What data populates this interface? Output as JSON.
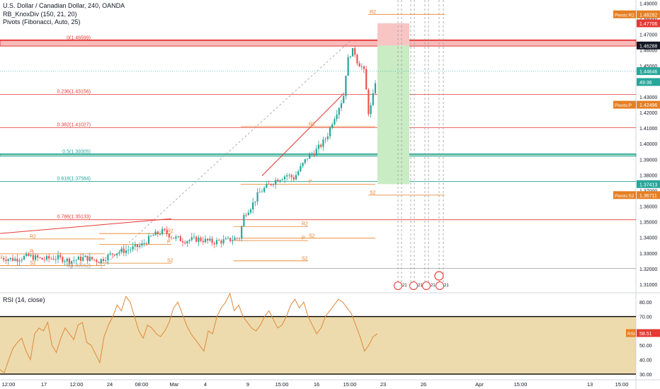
{
  "legend": {
    "symbol": "U.S. Dollar / Canadian Dollar, 240, OANDA",
    "indicator1": "RB_KnoxDiv (150, 21, 20)",
    "indicator2": "Pivots (Fibonacci, Auto, 25)",
    "rsi": "RSI (14, close)"
  },
  "colors": {
    "candle_up": "#26a69a",
    "candle_down": "#ef5350",
    "pivot": "#e67e22",
    "fib_red": "#e53935",
    "fib_green": "#26a69a",
    "rsi_band": "#e6cc8a",
    "rsi_line": "#e0883a"
  },
  "price_axis": {
    "ticks": [
      "1.49000",
      "1.48000",
      "1.47000",
      "1.46000",
      "1.45000",
      "1.44000",
      "1.43000",
      "1.42000",
      "1.41000",
      "1.40000",
      "1.39000",
      "1.38000",
      "1.37000",
      "1.36000",
      "1.35000",
      "1.34000",
      "1.33000",
      "1.32000",
      "1.31000"
    ],
    "tags": [
      {
        "label": "Pivots:R2",
        "value": "1.48282",
        "bg": "#e67e22"
      },
      {
        "label": "",
        "value": "1.47706",
        "bg": "#e53935"
      },
      {
        "label": "",
        "value": "1.46288",
        "bg": "#131722"
      },
      {
        "label": "",
        "value": "1.44646",
        "bg": "#26a69a"
      },
      {
        "label": "",
        "value": "49:36",
        "bg": "#26a69a"
      },
      {
        "label": "Pivots:P",
        "value": "1.42496",
        "bg": "#e67e22"
      },
      {
        "label": "",
        "value": "1.37413",
        "bg": "#26a69a"
      },
      {
        "label": "Pivots:S2",
        "value": "1.36711",
        "bg": "#e67e22"
      }
    ]
  },
  "rsi_axis": {
    "ticks": [
      "80.00",
      "70.00",
      "60.00",
      "50.00",
      "40.00",
      "30.00"
    ],
    "tag_label": "RSI",
    "tag_value": "58.51"
  },
  "time_axis": [
    "12:00",
    "17",
    "12:00",
    "24",
    "08:00",
    "Mar",
    "4",
    "9",
    "15:00",
    "16",
    "15:00",
    "23",
    "26",
    "Apr",
    "15:00",
    "13",
    "15:00"
  ],
  "fib_levels": [
    {
      "label": "0(1.46599)",
      "price": 1.46599,
      "color": "#e53935"
    },
    {
      "label": "0.236(1.43156)",
      "price": 1.43156,
      "color": "#e53935"
    },
    {
      "label": "0.382(1.41027)",
      "price": 1.41027,
      "color": "#e53935"
    },
    {
      "label": "0.5(1.39305)",
      "price": 1.39305,
      "color": "#26a69a"
    },
    {
      "label": "0.618(1.37584)",
      "price": 1.37584,
      "color": "#26a69a"
    },
    {
      "label": "0.786(1.35133)",
      "price": 1.35133,
      "color": "#e53935"
    },
    {
      "label": "1(1.32012)",
      "price": 1.32012,
      "color": "#9e9e9e"
    }
  ],
  "pivot_labels": [
    "R2",
    "P",
    "S2",
    "R2",
    "P",
    "S2",
    "R2",
    "P",
    "S2",
    "R2",
    "P",
    "S2",
    "R2",
    "S2"
  ],
  "event_badges": [
    "21",
    "21",
    "21",
    "21"
  ],
  "chart_data": {
    "type": "candlestick",
    "title": "U.S. Dollar / Canadian Dollar, 240, OANDA",
    "y_range": [
      1.305,
      1.492
    ],
    "close_path": [
      [
        0,
        1.327
      ],
      [
        20,
        1.326
      ],
      [
        40,
        1.328
      ],
      [
        60,
        1.326
      ],
      [
        80,
        1.327
      ],
      [
        100,
        1.325
      ],
      [
        120,
        1.327
      ],
      [
        140,
        1.325
      ],
      [
        160,
        1.33
      ],
      [
        180,
        1.332
      ],
      [
        200,
        1.335
      ],
      [
        215,
        1.341
      ],
      [
        230,
        1.344
      ],
      [
        245,
        1.34
      ],
      [
        260,
        1.338
      ],
      [
        280,
        1.339
      ],
      [
        300,
        1.337
      ],
      [
        320,
        1.338
      ],
      [
        338,
        1.34
      ],
      [
        345,
        1.355
      ],
      [
        355,
        1.36
      ],
      [
        365,
        1.368
      ],
      [
        375,
        1.372
      ],
      [
        390,
        1.377
      ],
      [
        405,
        1.38
      ],
      [
        415,
        1.378
      ],
      [
        425,
        1.385
      ],
      [
        435,
        1.392
      ],
      [
        445,
        1.395
      ],
      [
        455,
        1.4
      ],
      [
        462,
        1.405
      ],
      [
        470,
        1.415
      ],
      [
        478,
        1.423
      ],
      [
        485,
        1.43
      ],
      [
        490,
        1.452
      ],
      [
        495,
        1.458
      ],
      [
        500,
        1.46
      ],
      [
        505,
        1.452
      ],
      [
        510,
        1.45
      ],
      [
        515,
        1.445
      ],
      [
        520,
        1.42
      ],
      [
        525,
        1.425
      ],
      [
        530,
        1.44
      ],
      [
        535,
        1.446
      ]
    ],
    "rsi_range": [
      27,
      86
    ],
    "rsi_values": [
      33,
      31,
      40,
      48,
      52,
      55,
      46,
      40,
      58,
      62,
      60,
      66,
      50,
      45,
      55,
      62,
      58,
      54,
      64,
      66,
      52,
      50,
      44,
      38,
      56,
      64,
      70,
      78,
      74,
      84,
      80,
      70,
      60,
      55,
      64,
      62,
      58,
      56,
      60,
      66,
      76,
      80,
      72,
      64,
      58,
      54,
      50,
      46,
      60,
      58,
      70,
      76,
      80,
      86,
      74,
      78,
      70,
      66,
      62,
      60,
      64,
      70,
      74,
      68,
      62,
      64,
      70,
      78,
      82,
      76,
      80,
      70,
      64,
      58,
      62,
      70,
      74,
      78,
      82,
      80,
      76,
      72,
      64,
      56,
      46,
      50,
      56,
      58
    ],
    "ylabel": ""
  }
}
